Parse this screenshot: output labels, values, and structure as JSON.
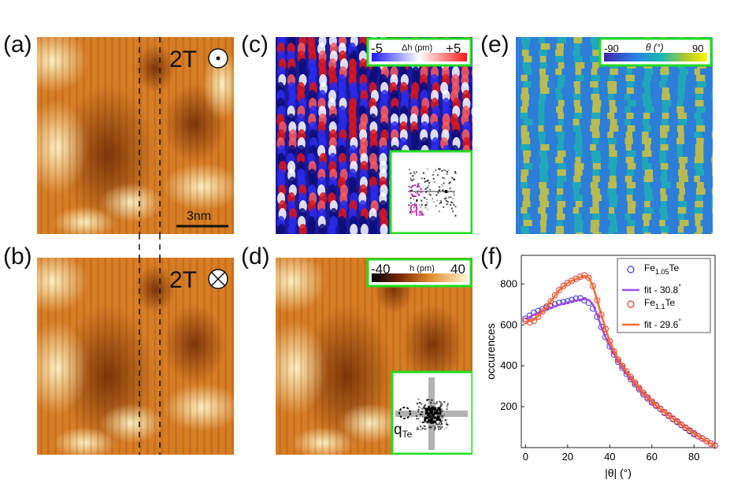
{
  "panels": {
    "a": {
      "label": "(a)",
      "field_text": "2T",
      "field_symbol": "dot-in-circle",
      "scalebar": "3nm"
    },
    "b": {
      "label": "(b)",
      "field_text": "2T",
      "field_symbol": "cross-in-circle"
    },
    "c": {
      "label": "(c)",
      "cbar_min": "-5",
      "cbar_title": "Δh (pm)",
      "cbar_max": "+5",
      "inset_label": "q",
      "inset_sub": "a"
    },
    "d": {
      "label": "(d)",
      "cbar_min": "-40",
      "cbar_title": "h (pm)",
      "cbar_max": "40",
      "inset_label": "q",
      "inset_sub": "Te"
    },
    "e": {
      "label": "(e)",
      "cbar_min": "-90",
      "cbar_title": "θ (°)",
      "cbar_max": "90"
    },
    "f": {
      "label": "(f)"
    }
  },
  "colors": {
    "frame_green": "#22dd22",
    "series1": "#3b3bd6",
    "series2": "#e8322a",
    "fit1": "#a24de0",
    "fit2": "#f56a2e",
    "magenta": "#e020c8"
  },
  "chart_data": {
    "type": "scatter",
    "xlabel": "|θ| (°)",
    "ylabel": "occurences",
    "xlim": [
      -2,
      90
    ],
    "ylim": [
      0,
      940
    ],
    "xticks": [
      0,
      20,
      40,
      60,
      80
    ],
    "yticks": [
      200,
      400,
      600,
      800
    ],
    "legend_position": "top-right",
    "series": [
      {
        "name": "Fe",
        "sub": "1.05",
        "suffix": "Te",
        "kind": "scatter",
        "color": "#3b3bd6",
        "x": [
          0,
          2,
          4,
          6,
          8,
          10,
          12,
          14,
          16,
          18,
          20,
          22,
          24,
          26,
          28,
          30,
          32,
          34,
          36,
          38,
          40,
          42,
          44,
          46,
          48,
          50,
          52,
          54,
          56,
          58,
          60,
          62,
          64,
          66,
          68,
          70,
          72,
          74,
          76,
          78,
          80,
          82,
          84,
          86,
          88,
          90
        ],
        "y": [
          630,
          645,
          660,
          668,
          676,
          684,
          692,
          700,
          708,
          712,
          716,
          722,
          728,
          730,
          720,
          708,
          680,
          640,
          590,
          540,
          495,
          455,
          420,
          390,
          360,
          335,
          310,
          285,
          260,
          240,
          220,
          205,
          188,
          170,
          155,
          140,
          125,
          110,
          95,
          80,
          65,
          55,
          45,
          32,
          20,
          10
        ]
      },
      {
        "name": "fit - 30.8",
        "sup": "°",
        "kind": "line",
        "color": "#a24de0",
        "x": [
          0,
          4,
          8,
          12,
          16,
          20,
          24,
          28,
          30,
          32,
          34,
          36,
          38,
          40,
          44,
          48,
          52,
          56,
          60,
          64,
          68,
          72,
          76,
          80,
          84,
          88,
          90
        ],
        "y": [
          628,
          650,
          668,
          684,
          698,
          710,
          720,
          726,
          722,
          700,
          650,
          590,
          540,
          495,
          420,
          360,
          310,
          262,
          222,
          188,
          156,
          126,
          96,
          68,
          42,
          20,
          10
        ]
      },
      {
        "name": "Fe",
        "sub": "1.1",
        "suffix": "Te",
        "kind": "scatter",
        "color": "#e8322a",
        "x": [
          0,
          2,
          4,
          6,
          8,
          10,
          12,
          14,
          16,
          18,
          20,
          22,
          24,
          26,
          28,
          30,
          32,
          34,
          36,
          38,
          40,
          42,
          44,
          46,
          48,
          50,
          52,
          54,
          56,
          58,
          60,
          62,
          64,
          66,
          68,
          70,
          72,
          74,
          76,
          78,
          80,
          82,
          84,
          86,
          88,
          90
        ],
        "y": [
          620,
          612,
          620,
          640,
          665,
          690,
          715,
          745,
          770,
          790,
          805,
          815,
          825,
          835,
          842,
          830,
          790,
          720,
          650,
          580,
          520,
          470,
          430,
          400,
          372,
          345,
          318,
          292,
          268,
          246,
          226,
          208,
          190,
          173,
          158,
          142,
          128,
          112,
          98,
          84,
          70,
          56,
          44,
          32,
          20,
          10
        ]
      },
      {
        "name": "fit - 29.6",
        "sup": "°",
        "kind": "line",
        "color": "#f56a2e",
        "x": [
          0,
          4,
          8,
          12,
          16,
          20,
          24,
          28,
          30,
          32,
          34,
          36,
          38,
          40,
          44,
          48,
          52,
          56,
          60,
          64,
          68,
          72,
          76,
          80,
          84,
          88,
          90
        ],
        "y": [
          612,
          625,
          662,
          715,
          770,
          805,
          825,
          840,
          832,
          790,
          720,
          650,
          580,
          520,
          430,
          372,
          318,
          268,
          226,
          190,
          158,
          128,
          98,
          70,
          44,
          20,
          10
        ]
      }
    ]
  }
}
